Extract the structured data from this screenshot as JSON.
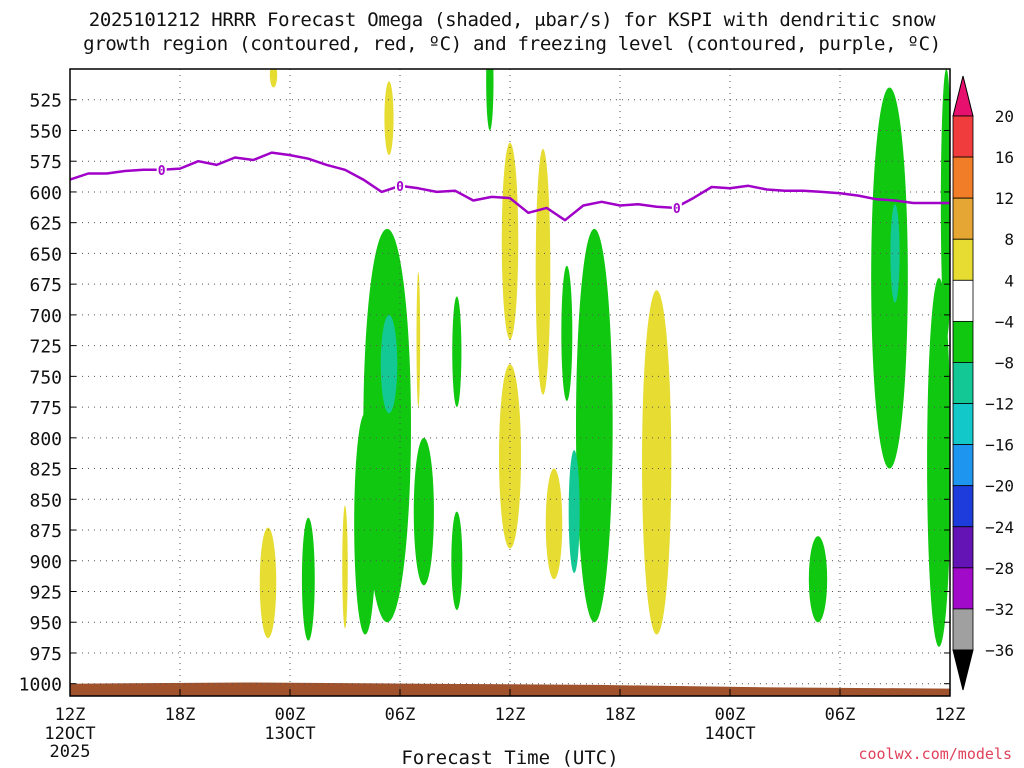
{
  "chart_data": {
    "type": "heatmap",
    "title_line_1": "2025101212 HRRR Forecast Omega (shaded, μbar/s) for KSPI with dendritic snow",
    "title_line_2": "growth region (contoured, red, ºC) and freezing level (contoured, purple, ºC)",
    "xlabel": "Forecast Time (UTC)",
    "x_axis": {
      "unit": "forecast_hour",
      "range": [
        0,
        48
      ],
      "ticks": [
        {
          "hour": 0,
          "label": "12Z",
          "day": "12OCT",
          "year": "2025"
        },
        {
          "hour": 6,
          "label": "18Z"
        },
        {
          "hour": 12,
          "label": "00Z",
          "day": "13OCT"
        },
        {
          "hour": 18,
          "label": "06Z"
        },
        {
          "hour": 24,
          "label": "12Z"
        },
        {
          "hour": 30,
          "label": "18Z"
        },
        {
          "hour": 36,
          "label": "00Z",
          "day": "14OCT"
        },
        {
          "hour": 42,
          "label": "06Z"
        },
        {
          "hour": 48,
          "label": "12Z"
        }
      ]
    },
    "y_axis": {
      "unit": "hPa",
      "range": [
        1010,
        500
      ],
      "ticks": [
        525,
        550,
        575,
        600,
        625,
        650,
        675,
        700,
        725,
        750,
        775,
        800,
        825,
        850,
        875,
        900,
        925,
        950,
        975,
        1000
      ]
    },
    "colorbar": {
      "labels": [
        "20",
        "16",
        "12",
        "8",
        "4",
        "−4",
        "−8",
        "−12",
        "−16",
        "−20",
        "−24",
        "−28",
        "−32",
        "−36"
      ],
      "bins": [
        {
          "range": "> 20",
          "color": "#e8106e"
        },
        {
          "range": "16 to 20",
          "color": "#f03c3c"
        },
        {
          "range": "12 to 16",
          "color": "#f27d28"
        },
        {
          "range": "8 to 12",
          "color": "#e6a633"
        },
        {
          "range": "4 to 8",
          "color": "#e6dc32"
        },
        {
          "range": "-4 to 4",
          "color": "#ffffff"
        },
        {
          "range": "-8 to -4",
          "color": "#0fc80f"
        },
        {
          "range": "-12 to -8",
          "color": "#14c896"
        },
        {
          "range": "-16 to -12",
          "color": "#12c8c8"
        },
        {
          "range": "-20 to -16",
          "color": "#1e96f0"
        },
        {
          "range": "-24 to -20",
          "color": "#1e3cdc"
        },
        {
          "range": "-28 to -24",
          "color": "#6414b4"
        },
        {
          "range": "-32 to -28",
          "color": "#a00ac8"
        },
        {
          "range": "-36 to -32",
          "color": "#a0a0a0"
        },
        {
          "range": "< -36",
          "color": "#000000"
        }
      ]
    },
    "freezing_level": {
      "color": "#a000c8",
      "contour_label": "0",
      "label_hours": [
        5.0,
        18.0,
        33.1
      ],
      "points": [
        [
          0,
          590
        ],
        [
          1,
          585
        ],
        [
          2,
          585
        ],
        [
          3,
          583
        ],
        [
          4,
          582
        ],
        [
          5,
          582
        ],
        [
          6,
          581
        ],
        [
          7,
          575
        ],
        [
          8,
          578
        ],
        [
          9,
          572
        ],
        [
          10,
          574
        ],
        [
          11,
          568
        ],
        [
          12,
          570
        ],
        [
          13,
          573
        ],
        [
          14,
          578
        ],
        [
          15,
          582
        ],
        [
          16,
          590
        ],
        [
          17,
          600
        ],
        [
          18,
          595
        ],
        [
          19,
          597
        ],
        [
          20,
          600
        ],
        [
          21,
          599
        ],
        [
          22,
          607
        ],
        [
          23,
          604
        ],
        [
          24,
          605
        ],
        [
          25,
          617
        ],
        [
          26,
          613
        ],
        [
          27,
          623
        ],
        [
          28,
          611
        ],
        [
          29,
          608
        ],
        [
          30,
          611
        ],
        [
          31,
          610
        ],
        [
          32,
          612
        ],
        [
          33,
          613
        ],
        [
          34,
          605
        ],
        [
          35,
          596
        ],
        [
          36,
          597
        ],
        [
          37,
          595
        ],
        [
          38,
          598
        ],
        [
          39,
          599
        ],
        [
          40,
          599
        ],
        [
          41,
          600
        ],
        [
          42,
          601
        ],
        [
          43,
          603
        ],
        [
          44,
          606
        ],
        [
          45,
          607
        ],
        [
          46,
          609
        ],
        [
          47,
          609
        ],
        [
          48,
          609
        ]
      ]
    },
    "omega_features": [
      {
        "level": "4 to 8",
        "color": "#e6dc32",
        "center": [
          17.4,
          540
        ],
        "half_width": [
          0.25,
          30
        ]
      },
      {
        "level": "4 to 8",
        "color": "#e6dc32",
        "center": [
          11.1,
          505
        ],
        "half_width": [
          0.2,
          10
        ]
      },
      {
        "level": "4 to 8",
        "color": "#e6dc32",
        "center": [
          24.0,
          640
        ],
        "half_width": [
          0.45,
          80
        ]
      },
      {
        "level": "4 to 8",
        "color": "#e6dc32",
        "center": [
          25.8,
          665
        ],
        "half_width": [
          0.4,
          100
        ]
      },
      {
        "level": "4 to 8",
        "color": "#e6dc32",
        "center": [
          24.0,
          815
        ],
        "half_width": [
          0.6,
          75
        ]
      },
      {
        "level": "4 to 8",
        "color": "#e6dc32",
        "center": [
          26.4,
          870
        ],
        "half_width": [
          0.45,
          45
        ]
      },
      {
        "level": "4 to 8",
        "color": "#e6dc32",
        "center": [
          32.0,
          820
        ],
        "half_width": [
          0.8,
          140
        ]
      },
      {
        "level": "4 to 8",
        "color": "#e6dc32",
        "center": [
          19.0,
          720
        ],
        "half_width": [
          0.1,
          55
        ]
      },
      {
        "level": "4 to 8",
        "color": "#e6dc32",
        "center": [
          10.8,
          918
        ],
        "half_width": [
          0.45,
          45
        ]
      },
      {
        "level": "4 to 8",
        "color": "#e6dc32",
        "center": [
          15.0,
          905
        ],
        "half_width": [
          0.15,
          50
        ]
      },
      {
        "level": "-8 to -4",
        "color": "#0fc80f",
        "center": [
          22.9,
          510
        ],
        "half_width": [
          0.2,
          40
        ]
      },
      {
        "level": "-8 to -4",
        "color": "#0fc80f",
        "center": [
          17.3,
          790
        ],
        "half_width": [
          1.3,
          160
        ]
      },
      {
        "level": "-8 to -4",
        "color": "#0fc80f",
        "center": [
          16.1,
          870
        ],
        "half_width": [
          0.6,
          90
        ]
      },
      {
        "level": "-8 to -4",
        "color": "#0fc80f",
        "center": [
          21.1,
          730
        ],
        "half_width": [
          0.25,
          45
        ]
      },
      {
        "level": "-8 to -4",
        "color": "#0fc80f",
        "center": [
          19.3,
          860
        ],
        "half_width": [
          0.55,
          60
        ]
      },
      {
        "level": "-8 to -4",
        "color": "#0fc80f",
        "center": [
          21.1,
          900
        ],
        "half_width": [
          0.3,
          40
        ]
      },
      {
        "level": "-8 to -4",
        "color": "#0fc80f",
        "center": [
          13.0,
          915
        ],
        "half_width": [
          0.35,
          50
        ]
      },
      {
        "level": "-8 to -4",
        "color": "#0fc80f",
        "center": [
          27.1,
          715
        ],
        "half_width": [
          0.3,
          55
        ]
      },
      {
        "level": "-8 to -4",
        "color": "#0fc80f",
        "center": [
          28.6,
          790
        ],
        "half_width": [
          1.0,
          160
        ]
      },
      {
        "level": "-8 to -4",
        "color": "#0fc80f",
        "center": [
          28.4,
          755
        ],
        "half_width": [
          0.6,
          80
        ]
      },
      {
        "level": "-8 to -4",
        "color": "#0fc80f",
        "center": [
          40.8,
          915
        ],
        "half_width": [
          0.5,
          35
        ]
      },
      {
        "level": "-8 to -4",
        "color": "#0fc80f",
        "center": [
          44.7,
          670
        ],
        "half_width": [
          1.0,
          155
        ]
      },
      {
        "level": "-8 to -4",
        "color": "#0fc80f",
        "center": [
          47.4,
          820
        ],
        "half_width": [
          0.65,
          150
        ]
      },
      {
        "level": "-8 to -4",
        "color": "#0fc80f",
        "center": [
          47.8,
          610
        ],
        "half_width": [
          0.3,
          110
        ]
      },
      {
        "level": "-12 to -8",
        "color": "#14c896",
        "center": [
          17.4,
          740
        ],
        "half_width": [
          0.45,
          40
        ]
      },
      {
        "level": "-12 to -8",
        "color": "#14c896",
        "center": [
          27.5,
          860
        ],
        "half_width": [
          0.3,
          50
        ]
      },
      {
        "level": "-12 to -8",
        "color": "#14c896",
        "center": [
          45.0,
          650
        ],
        "half_width": [
          0.25,
          40
        ]
      }
    ],
    "terrain": {
      "color": "#a0522d",
      "surface_hPa": [
        1000,
        999,
        1000,
        1001,
        1003,
        1004
      ]
    }
  },
  "watermark": "coolwx.com/models"
}
